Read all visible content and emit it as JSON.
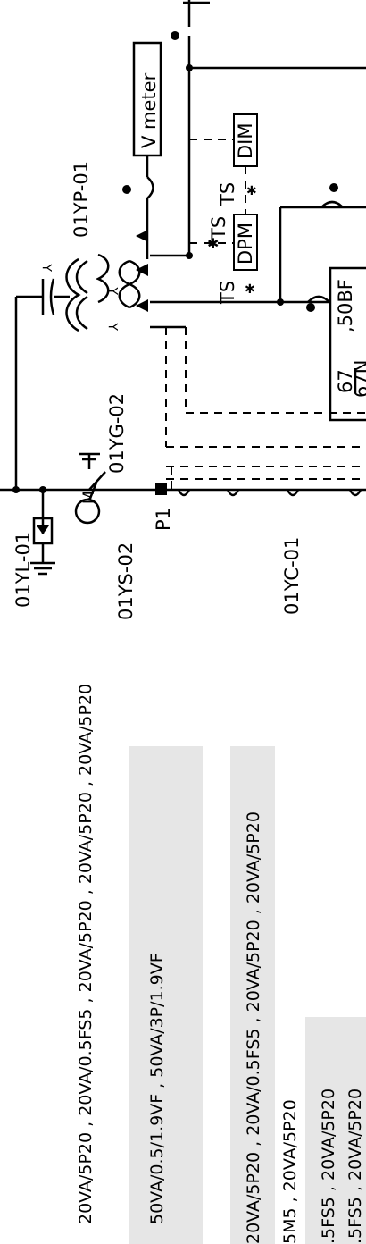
{
  "diagram": {
    "labels": {
      "yl": "01YL-01",
      "ys": "01YS-02",
      "yg": "01YG-02",
      "yp": "01YP-01",
      "yc": "01YC-01",
      "p1": "P1",
      "motor": "M",
      "vmeter": "V meter",
      "dim": "DIM",
      "dpm": "DPM",
      "ts1": "TS",
      "ts2": "TS",
      "ts3": "TS",
      "protection_top": "67",
      "protection_bottom": "67N",
      "protection_side": ",50BF"
    },
    "ct_notes": [
      "20VA/5P20 , 20VA/0.5FS5 , 20VA/5P20 , 20VA/5P20 , 20VA/5P20",
      "50VA/0.5/1.9VF , 50VA/3P/1.9VF",
      "20VA/5P20 , 20VA/0.5FS5 , 20VA/5P20 , 20VA/5P20",
      "5M5 , 20VA/5P20",
      ".5FS5 , 20VA/5P20",
      ".5FS5 , 20VA/5P20"
    ],
    "colors": {
      "line": "#000000",
      "note_bg": "#e6e6e6",
      "background": "#ffffff"
    }
  }
}
